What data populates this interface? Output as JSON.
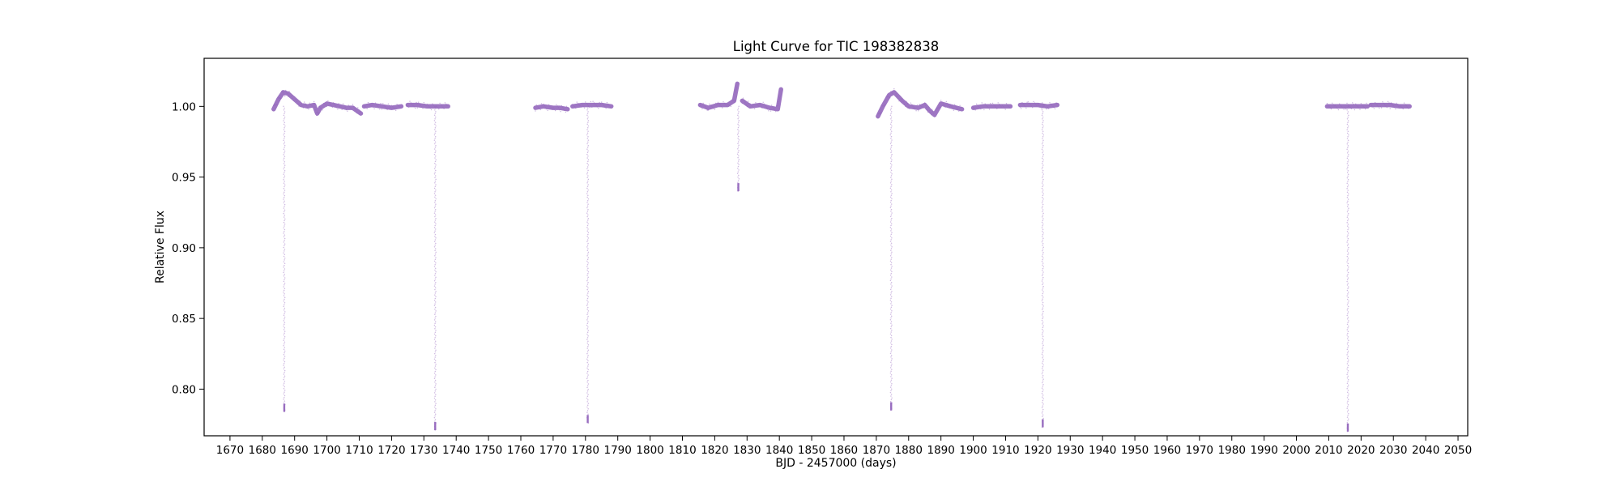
{
  "chart_data": {
    "type": "scatter",
    "title": "Light Curve for TIC 198382838",
    "xlabel": "BJD - 2457000 (days)",
    "ylabel": "Relative Flux",
    "xlim": [
      1662,
      2053
    ],
    "ylim": [
      0.767,
      1.034
    ],
    "x_ticks": [
      1670,
      1680,
      1690,
      1700,
      1710,
      1720,
      1730,
      1740,
      1750,
      1760,
      1770,
      1780,
      1790,
      1800,
      1810,
      1820,
      1830,
      1840,
      1850,
      1860,
      1870,
      1880,
      1890,
      1900,
      1910,
      1920,
      1930,
      1940,
      1950,
      1960,
      1970,
      1980,
      1990,
      2000,
      2010,
      2020,
      2030,
      2040,
      2050
    ],
    "y_ticks": [
      0.8,
      0.85,
      0.9,
      0.95,
      1.0
    ],
    "y_tick_labels": [
      "0.80",
      "0.85",
      "0.90",
      "0.95",
      "1.00"
    ],
    "grid": false,
    "color": "#9467bd",
    "series": [
      {
        "segments": [
          {
            "x": [
              1683.5,
              1685.0,
              1686.5,
              1688.0,
              1690.0,
              1692.0,
              1694.0,
              1696.0,
              1697.0,
              1698.0,
              1700.0,
              1702.0,
              1704.0,
              1706.0,
              1708.0,
              1710.5
            ],
            "y": [
              0.998,
              1.005,
              1.01,
              1.009,
              1.005,
              1.001,
              1.0,
              1.001,
              0.995,
              0.999,
              1.002,
              1.001,
              1.0,
              0.999,
              0.999,
              0.995
            ]
          },
          {
            "x": [
              1711.5,
              1714,
              1717,
              1720,
              1723.0
            ],
            "y": [
              1.0,
              1.001,
              1.0,
              0.999,
              1.0
            ]
          },
          {
            "x": [
              1725.0,
              1728,
              1731,
              1734,
              1737.5
            ],
            "y": [
              1.001,
              1.001,
              1.0,
              1.0,
              1.0
            ]
          },
          {
            "x": [
              1764.5,
              1767,
              1770,
              1772,
              1774.5
            ],
            "y": [
              0.999,
              1.0,
              0.999,
              0.999,
              0.998
            ]
          },
          {
            "x": [
              1776.0,
              1779,
              1782,
              1785,
              1788.0
            ],
            "y": [
              1.0,
              1.001,
              1.001,
              1.001,
              1.0
            ]
          },
          {
            "x": [
              1815.5,
              1818,
              1821,
              1824,
              1826.0,
              1827.0
            ],
            "y": [
              1.001,
              0.999,
              1.001,
              1.001,
              1.004,
              1.016
            ]
          },
          {
            "x": [
              1828.5,
              1831,
              1834,
              1837,
              1839.5,
              1840.5
            ],
            "y": [
              1.004,
              1.0,
              1.001,
              0.999,
              0.998,
              1.012
            ]
          },
          {
            "x": [
              1870.5,
              1872.0,
              1874.0,
              1875.5,
              1878.0,
              1880.0,
              1883.0,
              1885.0,
              1886.5,
              1888.0,
              1890.0,
              1893.0,
              1896.5
            ],
            "y": [
              0.993,
              1.0,
              1.008,
              1.01,
              1.004,
              1.0,
              0.999,
              1.001,
              0.997,
              0.994,
              1.002,
              1.0,
              0.998
            ]
          },
          {
            "x": [
              1900.0,
              1903,
              1906,
              1909,
              1911.5
            ],
            "y": [
              0.999,
              1.0,
              1.0,
              1.0,
              1.0
            ]
          },
          {
            "x": [
              1914.5,
              1917,
              1920,
              1923,
              1926.0
            ],
            "y": [
              1.001,
              1.001,
              1.001,
              1.0,
              1.001
            ]
          },
          {
            "x": [
              2009.5,
              2012,
              2015,
              2018,
              2022.0
            ],
            "y": [
              1.0,
              1.0,
              1.0,
              1.0,
              1.0
            ]
          },
          {
            "x": [
              2023.0,
              2026,
              2029,
              2032,
              2035.0
            ],
            "y": [
              1.001,
              1.001,
              1.001,
              1.0,
              1.0
            ]
          }
        ],
        "transits": [
          {
            "x": 1686.8,
            "y_min": 0.784
          },
          {
            "x": 1733.5,
            "y_min": 0.771
          },
          {
            "x": 1780.7,
            "y_min": 0.776
          },
          {
            "x": 1827.3,
            "y_min": 0.94
          },
          {
            "x": 1874.6,
            "y_min": 0.785
          },
          {
            "x": 1921.5,
            "y_min": 0.773
          },
          {
            "x": 2015.9,
            "y_min": 0.77
          }
        ]
      }
    ]
  }
}
